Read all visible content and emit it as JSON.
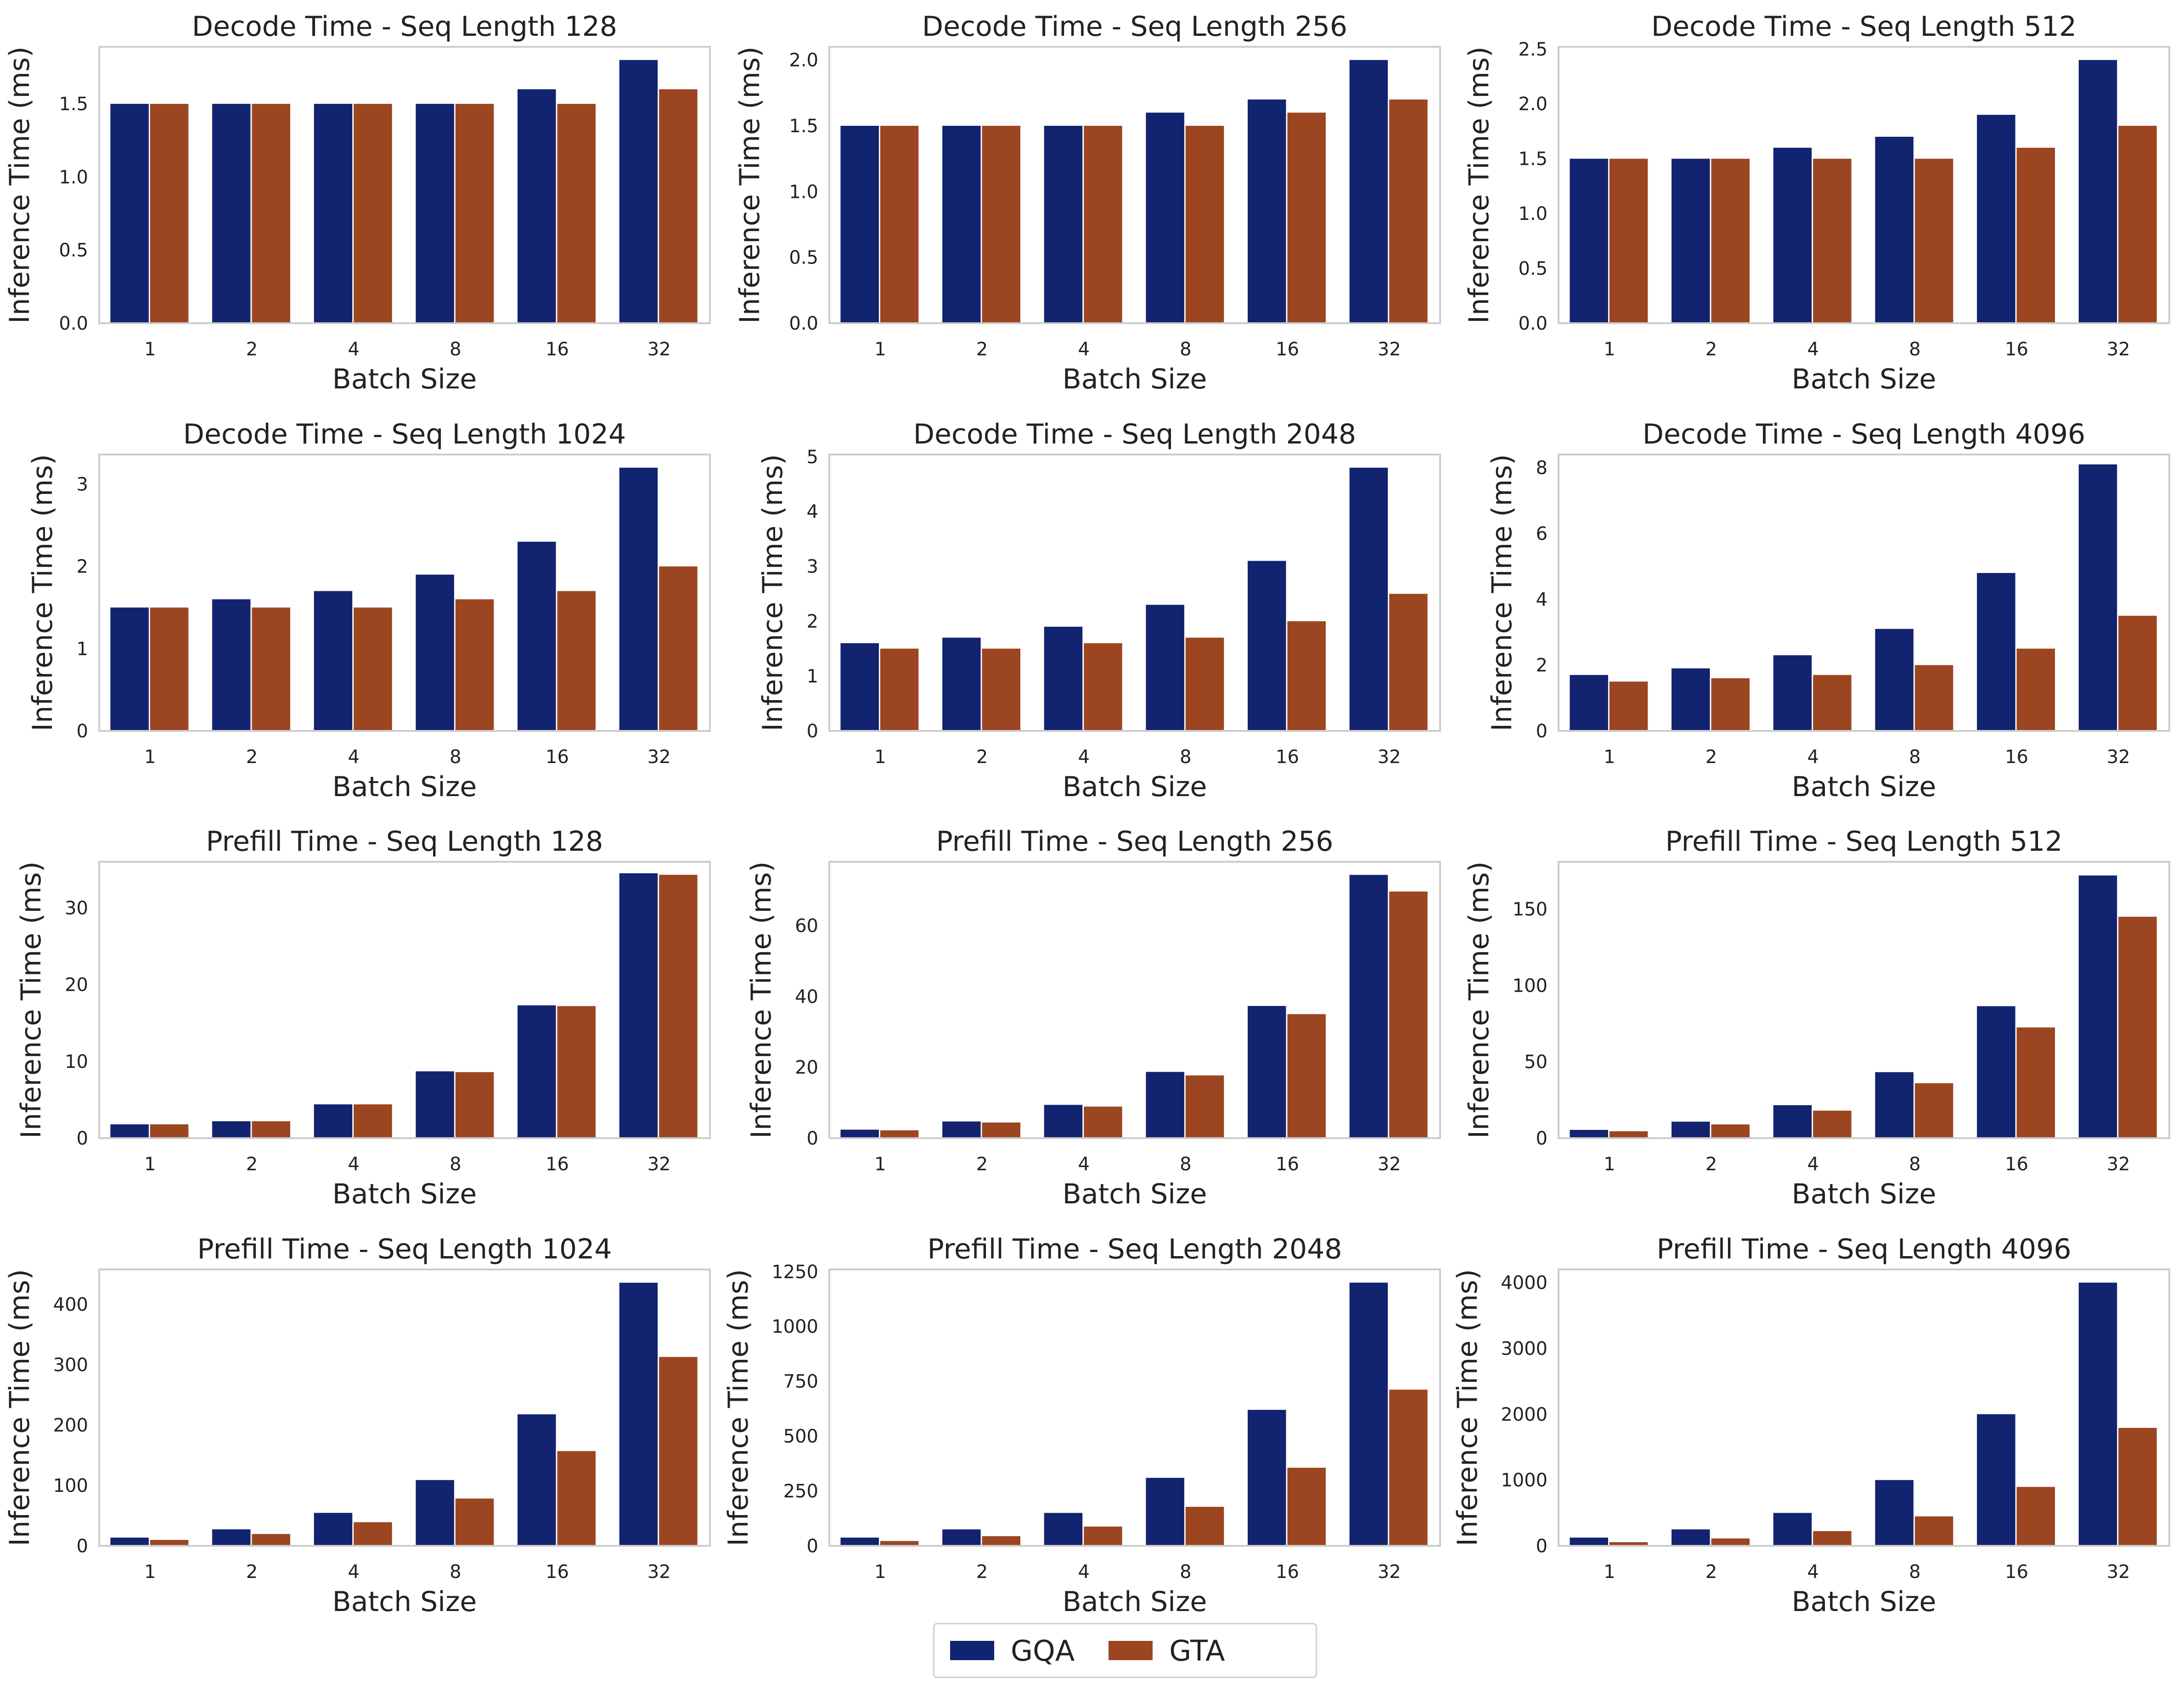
{
  "colors": {
    "GQA": "#12236f",
    "GTA": "#9c4621",
    "frame": "#cccccc",
    "text": "#222222"
  },
  "legend": {
    "entries": [
      "GQA",
      "GTA"
    ]
  },
  "chart_data": [
    {
      "type": "bar",
      "title": "Decode Time - Seq Length 128",
      "xlabel": "Batch Size",
      "ylabel": "Inference Time (ms)",
      "categories": [
        "1",
        "2",
        "4",
        "8",
        "16",
        "32"
      ],
      "ylim": [
        0,
        1.89
      ],
      "yticks": [
        0.0,
        0.5,
        1.0,
        1.5
      ],
      "ytick_labels": [
        "0.0",
        "0.5",
        "1.0",
        "1.5"
      ],
      "series": [
        {
          "name": "GQA",
          "values": [
            1.5,
            1.5,
            1.5,
            1.5,
            1.6,
            1.8
          ]
        },
        {
          "name": "GTA",
          "values": [
            1.5,
            1.5,
            1.5,
            1.5,
            1.5,
            1.6
          ]
        }
      ]
    },
    {
      "type": "bar",
      "title": "Decode Time - Seq Length 256",
      "xlabel": "Batch Size",
      "ylabel": "Inference Time (ms)",
      "categories": [
        "1",
        "2",
        "4",
        "8",
        "16",
        "32"
      ],
      "ylim": [
        0,
        2.1
      ],
      "yticks": [
        0.0,
        0.5,
        1.0,
        1.5,
        2.0
      ],
      "ytick_labels": [
        "0.0",
        "0.5",
        "1.0",
        "1.5",
        "2.0"
      ],
      "series": [
        {
          "name": "GQA",
          "values": [
            1.5,
            1.5,
            1.5,
            1.6,
            1.7,
            2.0
          ]
        },
        {
          "name": "GTA",
          "values": [
            1.5,
            1.5,
            1.5,
            1.5,
            1.6,
            1.7
          ]
        }
      ]
    },
    {
      "type": "bar",
      "title": "Decode Time - Seq Length 512",
      "xlabel": "Batch Size",
      "ylabel": "Inference Time (ms)",
      "categories": [
        "1",
        "2",
        "4",
        "8",
        "16",
        "32"
      ],
      "ylim": [
        0,
        2.52
      ],
      "yticks": [
        0.0,
        0.5,
        1.0,
        1.5,
        2.0,
        2.5
      ],
      "ytick_labels": [
        "0.0",
        "0.5",
        "1.0",
        "1.5",
        "2.0",
        "2.5"
      ],
      "series": [
        {
          "name": "GQA",
          "values": [
            1.5,
            1.5,
            1.6,
            1.7,
            1.9,
            2.4
          ]
        },
        {
          "name": "GTA",
          "values": [
            1.5,
            1.5,
            1.5,
            1.5,
            1.6,
            1.8
          ]
        }
      ]
    },
    {
      "type": "bar",
      "title": "Decode Time - Seq Length 1024",
      "xlabel": "Batch Size",
      "ylabel": "Inference Time (ms)",
      "categories": [
        "1",
        "2",
        "4",
        "8",
        "16",
        "32"
      ],
      "ylim": [
        0,
        3.36
      ],
      "yticks": [
        0,
        1,
        2,
        3
      ],
      "ytick_labels": [
        "0",
        "1",
        "2",
        "3"
      ],
      "series": [
        {
          "name": "GQA",
          "values": [
            1.5,
            1.6,
            1.7,
            1.9,
            2.3,
            3.2
          ]
        },
        {
          "name": "GTA",
          "values": [
            1.5,
            1.5,
            1.5,
            1.6,
            1.7,
            2.0
          ]
        }
      ]
    },
    {
      "type": "bar",
      "title": "Decode Time - Seq Length 2048",
      "xlabel": "Batch Size",
      "ylabel": "Inference Time (ms)",
      "categories": [
        "1",
        "2",
        "4",
        "8",
        "16",
        "32"
      ],
      "ylim": [
        0,
        5.04
      ],
      "yticks": [
        0,
        1,
        2,
        3,
        4,
        5
      ],
      "ytick_labels": [
        "0",
        "1",
        "2",
        "3",
        "4",
        "5"
      ],
      "series": [
        {
          "name": "GQA",
          "values": [
            1.6,
            1.7,
            1.9,
            2.3,
            3.1,
            4.8
          ]
        },
        {
          "name": "GTA",
          "values": [
            1.5,
            1.5,
            1.6,
            1.7,
            2.0,
            2.5
          ]
        }
      ]
    },
    {
      "type": "bar",
      "title": "Decode Time - Seq Length 4096",
      "xlabel": "Batch Size",
      "ylabel": "Inference Time (ms)",
      "categories": [
        "1",
        "2",
        "4",
        "8",
        "16",
        "32"
      ],
      "ylim": [
        0,
        8.4
      ],
      "yticks": [
        0,
        2,
        4,
        6,
        8
      ],
      "ytick_labels": [
        "0",
        "2",
        "4",
        "6",
        "8"
      ],
      "series": [
        {
          "name": "GQA",
          "values": [
            1.7,
            1.9,
            2.3,
            3.1,
            4.8,
            8.1
          ]
        },
        {
          "name": "GTA",
          "values": [
            1.5,
            1.6,
            1.7,
            2.0,
            2.5,
            3.5
          ]
        }
      ]
    },
    {
      "type": "bar",
      "title": "Prefill Time - Seq Length 128",
      "xlabel": "Batch Size",
      "ylabel": "Inference Time (ms)",
      "categories": [
        "1",
        "2",
        "4",
        "8",
        "16",
        "32"
      ],
      "ylim": [
        0,
        36
      ],
      "yticks": [
        0,
        10,
        20,
        30
      ],
      "ytick_labels": [
        "0",
        "10",
        "20",
        "30"
      ],
      "series": [
        {
          "name": "GQA",
          "values": [
            1.8,
            2.2,
            4.4,
            8.7,
            17.3,
            34.5
          ]
        },
        {
          "name": "GTA",
          "values": [
            1.8,
            2.2,
            4.4,
            8.6,
            17.2,
            34.3
          ]
        }
      ]
    },
    {
      "type": "bar",
      "title": "Prefill Time - Seq Length 256",
      "xlabel": "Batch Size",
      "ylabel": "Inference Time (ms)",
      "categories": [
        "1",
        "2",
        "4",
        "8",
        "16",
        "32"
      ],
      "ylim": [
        0,
        78
      ],
      "yticks": [
        0,
        20,
        40,
        60
      ],
      "ytick_labels": [
        "0",
        "20",
        "40",
        "60"
      ],
      "series": [
        {
          "name": "GQA",
          "values": [
            2.4,
            4.7,
            9.4,
            18.7,
            37.3,
            74.3
          ]
        },
        {
          "name": "GTA",
          "values": [
            2.2,
            4.4,
            8.9,
            17.7,
            35.0,
            69.6
          ]
        }
      ]
    },
    {
      "type": "bar",
      "title": "Prefill Time - Seq Length 512",
      "xlabel": "Batch Size",
      "ylabel": "Inference Time (ms)",
      "categories": [
        "1",
        "2",
        "4",
        "8",
        "16",
        "32"
      ],
      "ylim": [
        0,
        181
      ],
      "yticks": [
        0,
        50,
        100,
        150
      ],
      "ytick_labels": [
        "0",
        "50",
        "100",
        "150"
      ],
      "series": [
        {
          "name": "GQA",
          "values": [
            5.4,
            10.8,
            21.6,
            43.2,
            86.4,
            172
          ]
        },
        {
          "name": "GTA",
          "values": [
            4.5,
            9.0,
            18.0,
            36.0,
            72.5,
            145
          ]
        }
      ]
    },
    {
      "type": "bar",
      "title": "Prefill Time - Seq Length 1024",
      "xlabel": "Batch Size",
      "ylabel": "Inference Time (ms)",
      "categories": [
        "1",
        "2",
        "4",
        "8",
        "16",
        "32"
      ],
      "ylim": [
        0,
        458
      ],
      "yticks": [
        0,
        100,
        200,
        300,
        400
      ],
      "ytick_labels": [
        "0",
        "100",
        "200",
        "300",
        "400"
      ],
      "series": [
        {
          "name": "GQA",
          "values": [
            13.6,
            27.3,
            54.6,
            109,
            218,
            436
          ]
        },
        {
          "name": "GTA",
          "values": [
            9.8,
            19.6,
            39.2,
            78.4,
            157,
            313
          ]
        }
      ]
    },
    {
      "type": "bar",
      "title": "Prefill Time - Seq Length 2048",
      "xlabel": "Batch Size",
      "ylabel": "Inference Time (ms)",
      "categories": [
        "1",
        "2",
        "4",
        "8",
        "16",
        "32"
      ],
      "ylim": [
        0,
        1260
      ],
      "yticks": [
        0,
        250,
        500,
        750,
        1000,
        1250
      ],
      "ytick_labels": [
        "0",
        "250",
        "500",
        "750",
        "1000",
        "1250"
      ],
      "series": [
        {
          "name": "GQA",
          "values": [
            37.5,
            75,
            150,
            310,
            620,
            1200
          ]
        },
        {
          "name": "GTA",
          "values": [
            22,
            44,
            88,
            178,
            356,
            712
          ]
        }
      ]
    },
    {
      "type": "bar",
      "title": "Prefill Time - Seq Length 4096",
      "xlabel": "Batch Size",
      "ylabel": "Inference Time (ms)",
      "categories": [
        "1",
        "2",
        "4",
        "8",
        "16",
        "32"
      ],
      "ylim": [
        0,
        4200
      ],
      "yticks": [
        0,
        1000,
        2000,
        3000,
        4000
      ],
      "ytick_labels": [
        "0",
        "1000",
        "2000",
        "3000",
        "4000"
      ],
      "series": [
        {
          "name": "GQA",
          "values": [
            125,
            250,
            500,
            1000,
            2000,
            4000
          ]
        },
        {
          "name": "GTA",
          "values": [
            56,
            112,
            224,
            448,
            896,
            1792
          ]
        }
      ]
    }
  ]
}
